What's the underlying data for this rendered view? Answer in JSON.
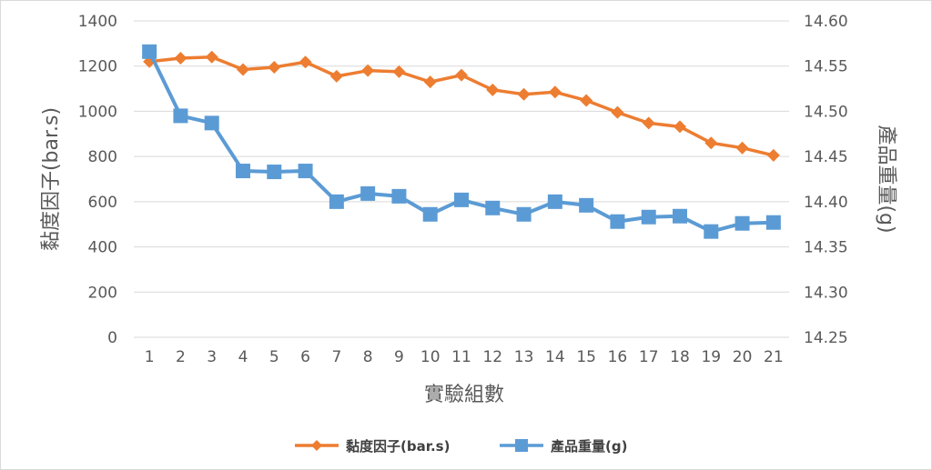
{
  "chart_data": {
    "type": "line",
    "xlabel": "實驗組數",
    "ylabel_left": "黏度因子(bar.s)",
    "ylabel_right": "產品重量(g)",
    "categories": [
      "1",
      "2",
      "3",
      "4",
      "5",
      "6",
      "7",
      "8",
      "9",
      "10",
      "11",
      "12",
      "13",
      "14",
      "15",
      "16",
      "17",
      "18",
      "19",
      "20",
      "21"
    ],
    "y_left_ticks": [
      "0",
      "200",
      "400",
      "600",
      "800",
      "1000",
      "1200",
      "1400"
    ],
    "y_right_ticks": [
      "14.25",
      "14.30",
      "14.35",
      "14.40",
      "14.45",
      "14.50",
      "14.55",
      "14.60"
    ],
    "ylim_left": [
      0,
      1400
    ],
    "ylim_right": [
      14.25,
      14.6
    ],
    "grid": "horizontal",
    "legend_position": "bottom",
    "series": [
      {
        "name": "黏度因子(bar.s)",
        "axis": "left",
        "marker": "diamond",
        "color": "#ED7D31",
        "values": [
          1220,
          1235,
          1240,
          1185,
          1195,
          1218,
          1155,
          1180,
          1175,
          1130,
          1160,
          1095,
          1075,
          1085,
          1048,
          995,
          948,
          932,
          860,
          838,
          805
        ]
      },
      {
        "name": "產品重量(g)",
        "axis": "right",
        "marker": "square",
        "color": "#5B9BD5",
        "values": [
          14.566,
          14.495,
          14.487,
          14.434,
          14.433,
          14.434,
          14.4,
          14.409,
          14.406,
          14.386,
          14.402,
          14.393,
          14.386,
          14.4,
          14.396,
          14.378,
          14.383,
          14.384,
          14.367,
          14.376,
          14.377
        ]
      }
    ]
  }
}
